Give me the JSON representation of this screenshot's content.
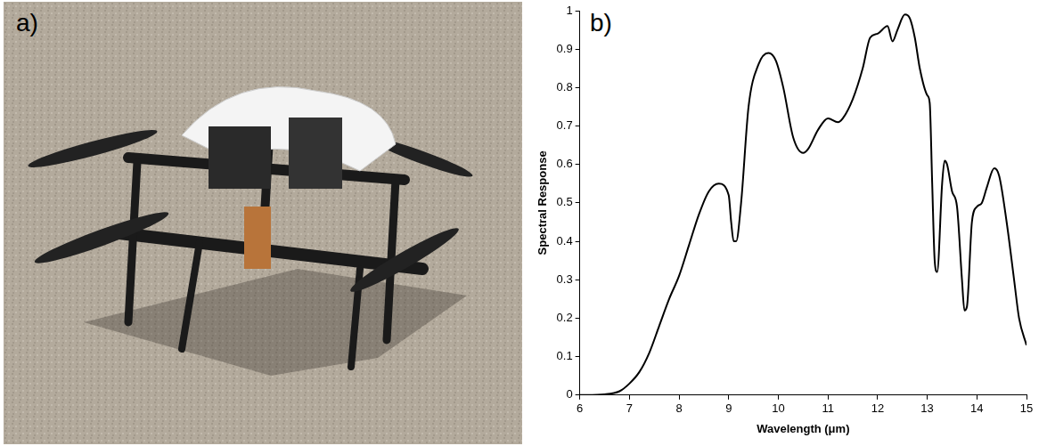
{
  "photo": {
    "panel_label": "a)"
  },
  "chart_data": {
    "type": "line",
    "panel_label": "b)",
    "x_label": "Wavelength (μm)",
    "y_label": "Spectral Response",
    "x": [
      6.0,
      6.5,
      6.8,
      7.0,
      7.2,
      7.4,
      7.6,
      7.8,
      8.0,
      8.2,
      8.4,
      8.6,
      8.8,
      9.0,
      9.05,
      9.1,
      9.15,
      9.25,
      9.4,
      9.6,
      9.8,
      9.95,
      10.1,
      10.3,
      10.5,
      10.6,
      10.8,
      11.0,
      11.2,
      11.3,
      11.5,
      11.7,
      11.85,
      12.0,
      12.2,
      12.3,
      12.4,
      12.55,
      12.65,
      12.75,
      12.85,
      13.0,
      13.05,
      13.1,
      13.15,
      13.2,
      13.3,
      13.35,
      13.4,
      13.5,
      13.6,
      13.7,
      13.75,
      13.8,
      13.9,
      14.0,
      14.1,
      14.2,
      14.35,
      14.45,
      14.6,
      14.75,
      14.85,
      15.0
    ],
    "values": [
      0,
      0.002,
      0.01,
      0.03,
      0.06,
      0.11,
      0.18,
      0.25,
      0.31,
      0.39,
      0.47,
      0.53,
      0.55,
      0.52,
      0.45,
      0.4,
      0.4,
      0.5,
      0.75,
      0.86,
      0.89,
      0.87,
      0.8,
      0.67,
      0.63,
      0.64,
      0.69,
      0.72,
      0.71,
      0.72,
      0.77,
      0.85,
      0.93,
      0.94,
      0.96,
      0.92,
      0.95,
      0.99,
      0.98,
      0.93,
      0.85,
      0.78,
      0.76,
      0.55,
      0.35,
      0.32,
      0.55,
      0.61,
      0.6,
      0.53,
      0.49,
      0.3,
      0.22,
      0.23,
      0.45,
      0.49,
      0.5,
      0.54,
      0.59,
      0.57,
      0.45,
      0.3,
      0.2,
      0.13
    ],
    "color": "#000000",
    "xlim": [
      6,
      15
    ],
    "xticks": [
      6,
      7,
      8,
      9,
      10,
      11,
      12,
      13,
      14,
      15
    ],
    "ylim": [
      0,
      1
    ],
    "yticks": [
      0,
      0.1,
      0.2,
      0.3,
      0.4,
      0.5,
      0.6,
      0.7,
      0.8,
      0.9,
      1
    ],
    "grid": false
  }
}
